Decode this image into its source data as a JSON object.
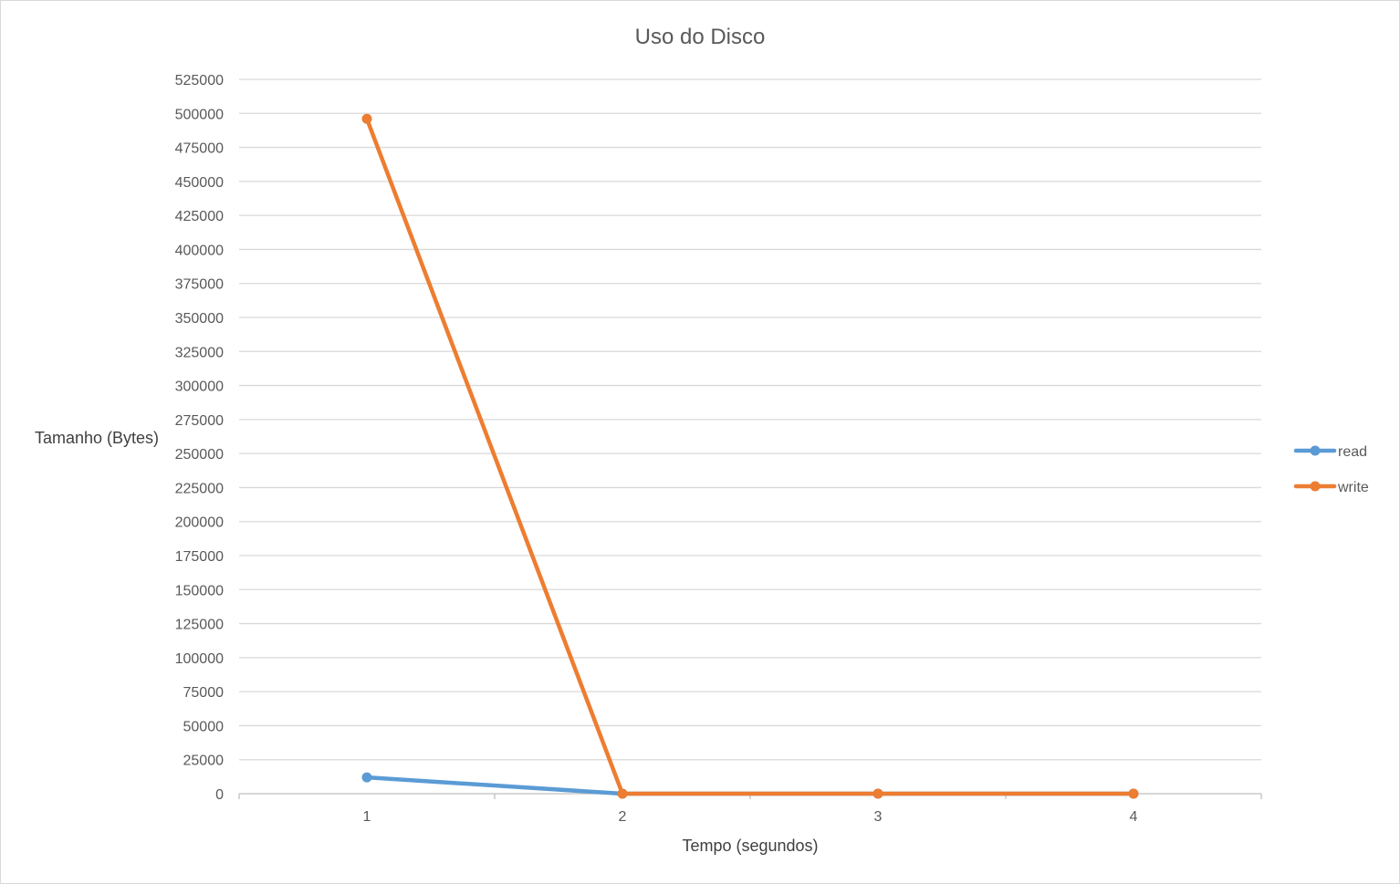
{
  "chart_data": {
    "type": "line",
    "title": "Uso do Disco",
    "xlabel": "Tempo (segundos)",
    "ylabel": "Tamanho (Bytes)",
    "categories": [
      "1",
      "2",
      "3",
      "4"
    ],
    "ylim": [
      0,
      525000
    ],
    "yticks": [
      0,
      25000,
      50000,
      75000,
      100000,
      125000,
      150000,
      175000,
      200000,
      225000,
      250000,
      275000,
      300000,
      325000,
      350000,
      375000,
      400000,
      425000,
      450000,
      475000,
      500000,
      525000
    ],
    "ytick_labels": [
      "0",
      "25000",
      "50000",
      "75000",
      "100000",
      "125000",
      "150000",
      "175000",
      "200000",
      "225000",
      "250000",
      "275000",
      "300000",
      "325000",
      "350000",
      "375000",
      "400000",
      "425000",
      "450000",
      "475000",
      "500000",
      "525000"
    ],
    "grid": true,
    "legend_position": "right",
    "series": [
      {
        "name": "read",
        "values": [
          12000,
          0,
          0,
          0
        ],
        "color": "#5b9bd5"
      },
      {
        "name": "write",
        "values": [
          496000,
          0,
          0,
          0
        ],
        "color": "#ed7d31"
      }
    ]
  },
  "colors": {
    "gridline": "#d9d9d9",
    "axis": "#bfbfbf",
    "frame": "#d9d9d9"
  }
}
